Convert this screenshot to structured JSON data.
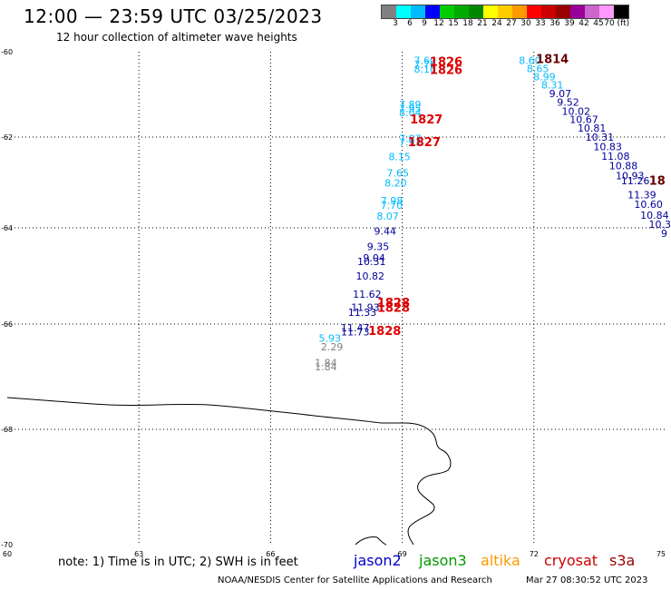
{
  "header": {
    "title": "12:00 — 23:59 UTC 03/25/2023",
    "subtitle": "12 hour collection of altimeter wave heights"
  },
  "colorbar": {
    "colors": [
      "#808080",
      "#00ffff",
      "#00bbff",
      "#0000ff",
      "#00cc00",
      "#00aa00",
      "#008800",
      "#ffff00",
      "#ffcc00",
      "#ff9900",
      "#ff0000",
      "#cc0000",
      "#990000",
      "#990099",
      "#cc66cc",
      "#ff99ff",
      "#000000"
    ],
    "labels": [
      "3",
      "6",
      "9",
      "12",
      "15",
      "18",
      "21",
      "24",
      "27",
      "30",
      "33",
      "36",
      "39",
      "42",
      "45",
      "70 (ft)"
    ]
  },
  "axes": {
    "y_labels": [
      "-60",
      "-62",
      "-64",
      "-66",
      "-68",
      "-70"
    ],
    "x_labels": [
      "60",
      "63",
      "66",
      "69",
      "72",
      "75"
    ]
  },
  "tracks": [
    {
      "color": "#00bbff",
      "items": [
        {
          "t": "7.60",
          "lon": 69.52,
          "lat": -60.2
        },
        {
          "t": "7.76",
          "lon": 69.52,
          "lat": -60.3
        },
        {
          "t": "8.10",
          "lon": 69.52,
          "lat": -60.4
        },
        {
          "t": "7.89",
          "lon": 69.18,
          "lat": -61.23
        },
        {
          "t": "7.95",
          "lon": 69.18,
          "lat": -61.33
        },
        {
          "t": "8.04",
          "lon": 69.18,
          "lat": -61.43
        },
        {
          "t": "7.87",
          "lon": 69.18,
          "lat": -62.03
        },
        {
          "t": "7.93",
          "lon": 69.18,
          "lat": -62.11
        },
        {
          "t": "8.15",
          "lon": 68.94,
          "lat": -62.43
        },
        {
          "t": "7.65",
          "lon": 68.9,
          "lat": -62.79
        },
        {
          "t": "8.20",
          "lon": 68.85,
          "lat": -63.01
        },
        {
          "t": "7.98",
          "lon": 68.76,
          "lat": -63.4
        },
        {
          "t": "7.70",
          "lon": 68.76,
          "lat": -63.5
        },
        {
          "t": "8.07",
          "lon": 68.67,
          "lat": -63.74
        },
        {
          "t": "5.93",
          "lon": 67.35,
          "lat": -66.27
        }
      ]
    },
    {
      "color": "#000099",
      "items": [
        {
          "t": "9.44",
          "lon": 68.61,
          "lat": -64.07
        },
        {
          "t": "9.35",
          "lon": 68.45,
          "lat": -64.39
        },
        {
          "t": "9.04",
          "lon": 68.36,
          "lat": -64.62
        },
        {
          "t": "10.31",
          "lon": 68.3,
          "lat": -64.7
        },
        {
          "t": "10.82",
          "lon": 68.27,
          "lat": -65.0
        },
        {
          "t": "11.62",
          "lon": 68.2,
          "lat": -65.38
        },
        {
          "t": "11.93",
          "lon": 68.16,
          "lat": -65.65
        },
        {
          "t": "11.33",
          "lon": 68.09,
          "lat": -65.75
        },
        {
          "t": "11.47",
          "lon": 67.93,
          "lat": -66.07
        },
        {
          "t": "11.73",
          "lon": 67.93,
          "lat": -66.15
        }
      ]
    },
    {
      "color": "#00bbff",
      "items": [
        {
          "t": "8.60",
          "lon": 71.91,
          "lat": -60.2
        },
        {
          "t": "8.65",
          "lon": 72.09,
          "lat": -60.39
        },
        {
          "t": "8.99",
          "lon": 72.24,
          "lat": -60.59
        },
        {
          "t": "8.31",
          "lon": 72.42,
          "lat": -60.78
        }
      ]
    },
    {
      "color": "#000099",
      "items": [
        {
          "t": "9.07",
          "lon": 72.6,
          "lat": -60.98
        },
        {
          "t": "9.52",
          "lon": 72.78,
          "lat": -61.18
        },
        {
          "t": "10.02",
          "lon": 72.96,
          "lat": -61.39
        },
        {
          "t": "10.67",
          "lon": 73.14,
          "lat": -61.59
        },
        {
          "t": "10.81",
          "lon": 73.32,
          "lat": -61.79
        },
        {
          "t": "10.31",
          "lon": 73.5,
          "lat": -62.0
        },
        {
          "t": "10.83",
          "lon": 73.68,
          "lat": -62.21
        },
        {
          "t": "11.08",
          "lon": 73.86,
          "lat": -62.42
        },
        {
          "t": "10.88",
          "lon": 74.04,
          "lat": -62.63
        },
        {
          "t": "10.93",
          "lon": 74.19,
          "lat": -62.85
        },
        {
          "t": "11.26",
          "lon": 74.31,
          "lat": -62.96
        },
        {
          "t": "11.39",
          "lon": 74.46,
          "lat": -63.27
        },
        {
          "t": "10.60",
          "lon": 74.61,
          "lat": -63.48
        },
        {
          "t": "10.84",
          "lon": 74.75,
          "lat": -63.72
        },
        {
          "t": "10.3",
          "lon": 74.87,
          "lat": -63.92
        },
        {
          "t": "9",
          "lon": 74.97,
          "lat": -64.11
        }
      ]
    },
    {
      "color": "#808080",
      "items": [
        {
          "t": "2.29",
          "lon": 67.4,
          "lat": -66.43
        },
        {
          "t": "1.84",
          "lon": 67.26,
          "lat": -66.73
        },
        {
          "t": "1.84",
          "lon": 67.26,
          "lat": -66.81
        }
      ]
    }
  ],
  "time_labels": [
    {
      "t": "1826",
      "lon": 70.0,
      "lat": -60.22,
      "color": "#dd0000"
    },
    {
      "t": "1826",
      "lon": 70.0,
      "lat": -60.42,
      "color": "#dd0000"
    },
    {
      "t": "1814",
      "lon": 72.42,
      "lat": -60.16,
      "color": "#660000"
    },
    {
      "t": "1827",
      "lon": 69.55,
      "lat": -61.57,
      "color": "#dd0000"
    },
    {
      "t": "1827",
      "lon": 69.5,
      "lat": -62.1,
      "color": "#dd0000"
    },
    {
      "t": "1828",
      "lon": 68.8,
      "lat": -65.55,
      "color": "#dd0000"
    },
    {
      "t": "1828",
      "lon": 68.8,
      "lat": -65.65,
      "color": "#dd0000"
    },
    {
      "t": "1828",
      "lon": 68.6,
      "lat": -66.12,
      "color": "#dd0000"
    },
    {
      "t": "18",
      "lon": 74.81,
      "lat": -62.95,
      "color": "#660000"
    }
  ],
  "footer": {
    "note": "note: 1) Time is in UTC; 2) SWH is in feet",
    "credit": "NOAA/NESDIS Center for Satellite Applications and Research",
    "timestamp": "Mar 27 08:30:52 UTC 2023"
  },
  "legend": [
    {
      "name": "jason2",
      "color": "#0000cc"
    },
    {
      "name": "jason3",
      "color": "#009900"
    },
    {
      "name": "altika",
      "color": "#ff9900"
    },
    {
      "name": "cryosat",
      "color": "#cc0000"
    },
    {
      "name": "s3a",
      "color": "#990000"
    }
  ]
}
